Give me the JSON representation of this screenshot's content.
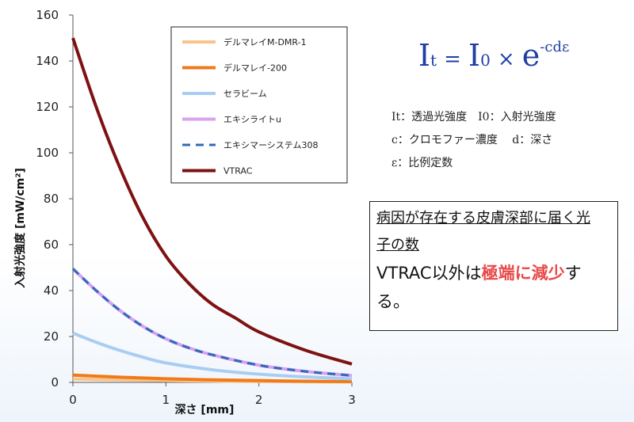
{
  "chart_data": {
    "type": "line",
    "xlabel": "深さ [mm]",
    "ylabel": "入射光強度 [mW/cm²]",
    "xlim": [
      0,
      3
    ],
    "ylim": [
      0,
      160
    ],
    "x_ticks": [
      "0",
      "1",
      "2",
      "3"
    ],
    "y_ticks": [
      "0",
      "20",
      "40",
      "60",
      "80",
      "100",
      "120",
      "140",
      "160"
    ],
    "legend_position": "top-right",
    "series": [
      {
        "name": "デルマレイM-DMR-1",
        "color": "#f9c48a",
        "dash": false,
        "x": [
          0,
          0.5,
          1,
          1.5,
          2,
          2.5,
          3
        ],
        "y": [
          1.5,
          1.1,
          0.8,
          0.6,
          0.4,
          0.3,
          0.2
        ]
      },
      {
        "name": "デルマレイ-200",
        "color": "#f07a1a",
        "dash": false,
        "x": [
          0,
          0.5,
          1,
          1.5,
          2,
          2.5,
          3
        ],
        "y": [
          3.2,
          2.3,
          1.6,
          1.1,
          0.8,
          0.5,
          0.4
        ]
      },
      {
        "name": "セラビーム",
        "color": "#a9cdf2",
        "dash": false,
        "x": [
          0,
          0.25,
          0.5,
          0.75,
          1,
          1.5,
          2,
          2.5,
          3
        ],
        "y": [
          21.5,
          17.5,
          14,
          11,
          8.5,
          5.5,
          3.6,
          2.4,
          1.6
        ]
      },
      {
        "name": "エキシライトu",
        "color": "#d9a1f0",
        "dash": false,
        "x": [
          0,
          0.25,
          0.5,
          0.75,
          1,
          1.25,
          1.5,
          2,
          2.5,
          3
        ],
        "y": [
          49.5,
          40,
          31.5,
          24.5,
          19,
          15,
          12,
          7.5,
          4.8,
          3
        ]
      },
      {
        "name": "エキシマーシステム308",
        "color": "#2f6bb8",
        "dash": true,
        "x": [
          0,
          0.25,
          0.5,
          0.75,
          1,
          1.25,
          1.5,
          2,
          2.5,
          3
        ],
        "y": [
          49.5,
          40,
          31.5,
          24.5,
          19,
          15,
          12,
          7.5,
          4.8,
          3
        ]
      },
      {
        "name": "VTRAC",
        "color": "#7e1212",
        "dash": false,
        "x": [
          0,
          0.25,
          0.5,
          0.75,
          1,
          1.25,
          1.5,
          1.75,
          2,
          2.5,
          3
        ],
        "y": [
          150,
          120,
          94,
          72,
          55,
          43,
          34,
          28,
          22,
          14,
          8
        ]
      }
    ]
  },
  "formula": {
    "I": "I",
    "t": "t",
    "eq": "=",
    "zero": "0",
    "times": "×",
    "e": "e",
    "exp": "-cdε"
  },
  "notes": {
    "line1": "It：透過光強度　I0：入射光強度",
    "line2": "c：クロモファー濃度　  d：深さ",
    "line3": "ε：比例定数"
  },
  "callout": {
    "line1a": "病因が存在する皮膚深部に届く光",
    "line1b": "子の数",
    "line2a": "VTRAC以外は",
    "line2b": "極端に減少",
    "line2c": "す",
    "line3": "る。"
  }
}
